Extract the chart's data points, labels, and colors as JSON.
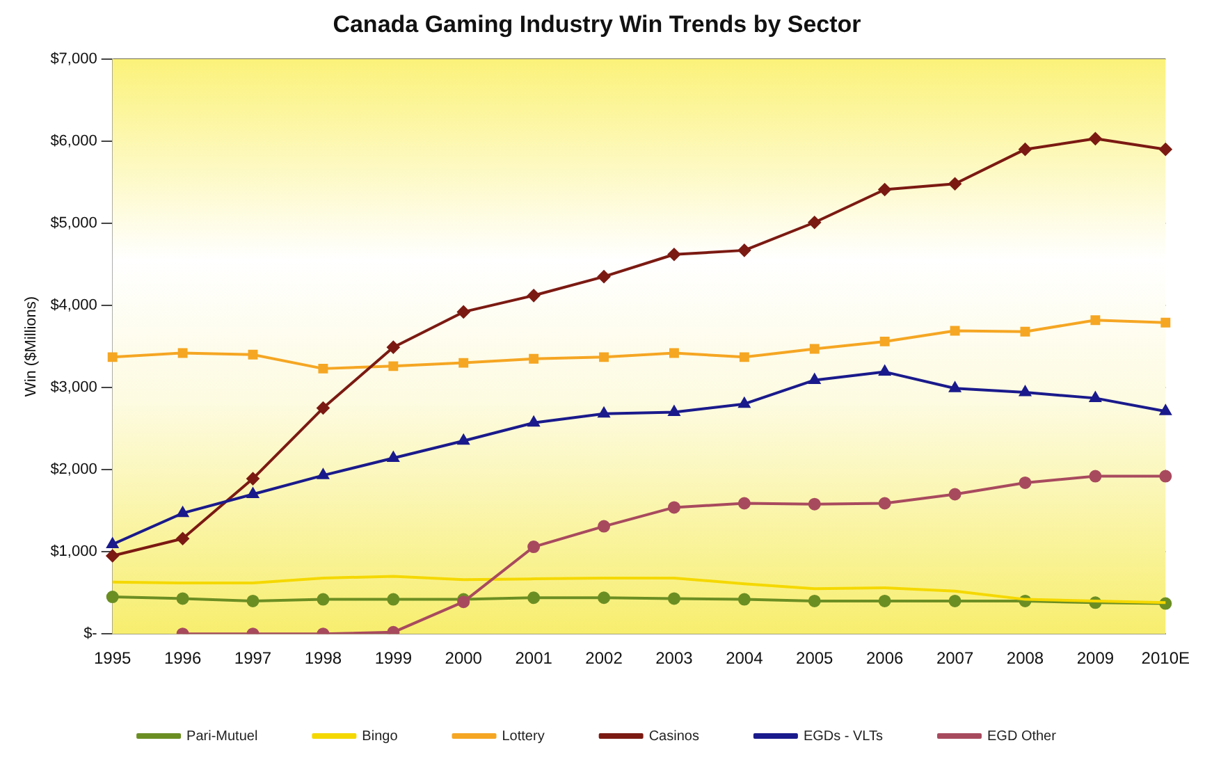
{
  "chart_data": {
    "type": "line",
    "title": "Canada Gaming Industry Win Trends by Sector",
    "ylabel": "Win ($Millions)",
    "categories": [
      "1995",
      "1996",
      "1997",
      "1998",
      "1999",
      "2000",
      "2001",
      "2002",
      "2003",
      "2004",
      "2005",
      "2006",
      "2007",
      "2008",
      "2009",
      "2010E"
    ],
    "ylim": [
      0,
      7000
    ],
    "yticks": [
      {
        "value": 0,
        "label": "$-"
      },
      {
        "value": 1000,
        "label": "$1,000"
      },
      {
        "value": 2000,
        "label": "$2,000"
      },
      {
        "value": 3000,
        "label": "$3,000"
      },
      {
        "value": 4000,
        "label": "$4,000"
      },
      {
        "value": 5000,
        "label": "$5,000"
      },
      {
        "value": 6000,
        "label": "$6,000"
      },
      {
        "value": 7000,
        "label": "$7,000"
      }
    ],
    "grid": "y",
    "legend": "bottom",
    "line_style": "solid",
    "series": [
      {
        "name": "Pari-Mutuel",
        "color": "#6b8e23",
        "marker": "circle",
        "values": [
          450,
          430,
          400,
          420,
          420,
          420,
          440,
          440,
          430,
          420,
          400,
          400,
          400,
          400,
          380,
          370
        ]
      },
      {
        "name": "Bingo",
        "color": "#f5d800",
        "marker": "none",
        "values": [
          630,
          620,
          620,
          680,
          700,
          660,
          670,
          680,
          680,
          610,
          550,
          560,
          520,
          420,
          400,
          380
        ]
      },
      {
        "name": "Lottery",
        "color": "#f5a623",
        "marker": "square",
        "values": [
          3370,
          3420,
          3400,
          3230,
          3260,
          3300,
          3350,
          3370,
          3420,
          3370,
          3470,
          3560,
          3690,
          3680,
          3820,
          3790
        ]
      },
      {
        "name": "Casinos",
        "color": "#7b1a12",
        "marker": "diamond",
        "values": [
          950,
          1160,
          1890,
          2750,
          3490,
          3920,
          4120,
          4350,
          4620,
          4670,
          5010,
          5410,
          5480,
          5900,
          6030,
          5900
        ]
      },
      {
        "name": "EGDs - VLTs",
        "color": "#1a1a8c",
        "marker": "triangle",
        "values": [
          1090,
          1470,
          1700,
          1930,
          2140,
          2350,
          2570,
          2680,
          2700,
          2800,
          3090,
          3190,
          2990,
          2940,
          2870,
          2710
        ]
      },
      {
        "name": "EGD Other",
        "color": "#a84a5e",
        "marker": "circle",
        "values": [
          null,
          0,
          0,
          0,
          20,
          390,
          1060,
          1310,
          1540,
          1590,
          1580,
          1590,
          1700,
          1840,
          1920,
          1920
        ]
      }
    ]
  }
}
